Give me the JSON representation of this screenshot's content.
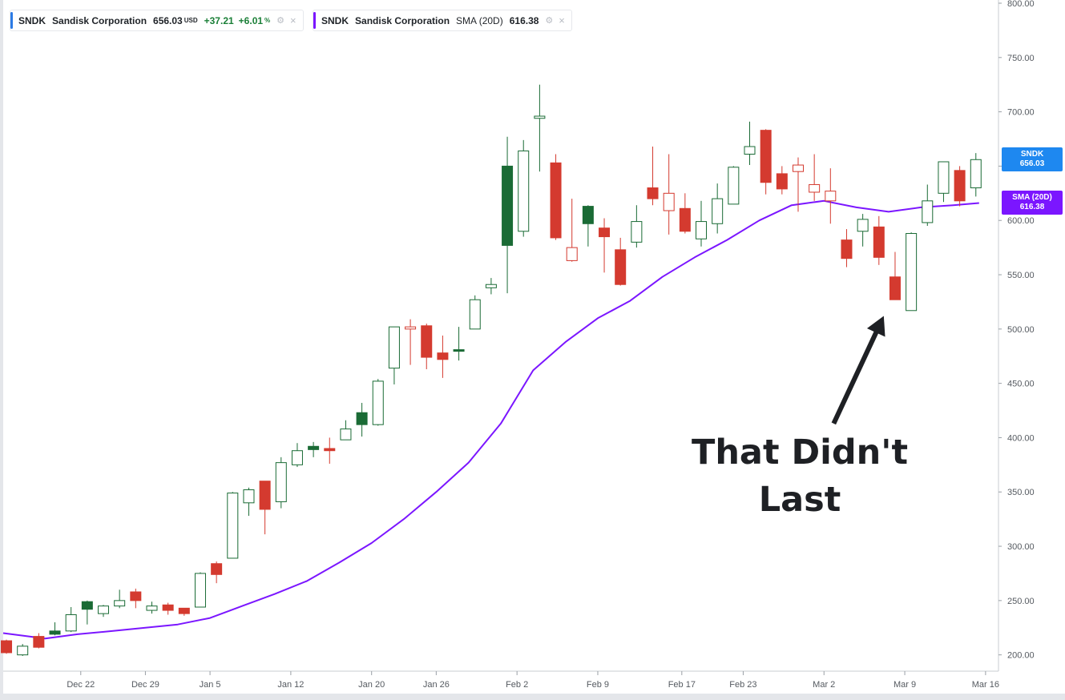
{
  "legends": [
    {
      "symbol": "SNDK",
      "name": "Sandisk Corporation",
      "price": "656.03",
      "currency": "USD",
      "change": "+37.21",
      "change_pct": "+6.01",
      "pct_sign": "%",
      "color": "#2c7be5"
    },
    {
      "symbol": "SNDK",
      "name": "Sandisk Corporation",
      "indicator": "SMA (20D)",
      "value": "616.38",
      "color": "#7b16ff"
    }
  ],
  "price_tags": [
    {
      "label": "SNDK",
      "value": "656.03",
      "color": "#1e88f0"
    },
    {
      "label": "SMA (20D)",
      "value": "616.38",
      "color": "#7b16ff"
    }
  ],
  "annotation": {
    "lines": [
      "That Didn't",
      "Last"
    ],
    "arrow": {
      "from_date_index": 51.2,
      "from_price": 413,
      "to_date_index": 54.3,
      "to_price": 512
    }
  },
  "chart_data": {
    "type": "candlestick",
    "y_axis": {
      "ticks": [
        "200.00",
        "250.00",
        "300.00",
        "350.00",
        "400.00",
        "450.00",
        "500.00",
        "550.00",
        "600.00",
        "650.00",
        "700.00",
        "750.00",
        "800.00"
      ],
      "ylim": [
        185,
        800
      ],
      "position": "right"
    },
    "x_axis": {
      "ticks": [
        {
          "label": "Dec 22",
          "index": 4.6
        },
        {
          "label": "Dec 29",
          "index": 8.6
        },
        {
          "label": "Jan 5",
          "index": 12.6
        },
        {
          "label": "Jan 12",
          "index": 17.6
        },
        {
          "label": "Jan 20",
          "index": 22.6
        },
        {
          "label": "Jan 26",
          "index": 26.6
        },
        {
          "label": "Feb 2",
          "index": 31.6
        },
        {
          "label": "Feb 9",
          "index": 36.6
        },
        {
          "label": "Feb 17",
          "index": 41.8
        },
        {
          "label": "Feb 23",
          "index": 45.6
        },
        {
          "label": "Mar 2",
          "index": 50.6
        },
        {
          "label": "Mar 9",
          "index": 55.6
        },
        {
          "label": "Mar 16",
          "index": 60.6
        }
      ],
      "index_range": [
        -0.2,
        61.4
      ]
    },
    "colors": {
      "up": "#1a6b35",
      "down": "#d43a2f",
      "sma": "#7b16ff"
    },
    "candles": [
      {
        "o": 213,
        "h": 214,
        "l": 201,
        "c": 202,
        "f": 1
      },
      {
        "o": 200,
        "h": 210,
        "l": 199,
        "c": 208,
        "f": 0
      },
      {
        "o": 217,
        "h": 220,
        "l": 206,
        "c": 207,
        "f": 1
      },
      {
        "o": 219,
        "h": 230,
        "l": 218,
        "c": 222,
        "f": 1
      },
      {
        "o": 222,
        "h": 244,
        "l": 221,
        "c": 237,
        "f": 0
      },
      {
        "o": 242,
        "h": 250,
        "l": 228,
        "c": 249,
        "f": 1
      },
      {
        "o": 238,
        "h": 246,
        "l": 235,
        "c": 245,
        "f": 0
      },
      {
        "o": 245,
        "h": 260,
        "l": 243,
        "c": 250,
        "f": 0
      },
      {
        "o": 258,
        "h": 261,
        "l": 243,
        "c": 250,
        "f": 1
      },
      {
        "o": 241,
        "h": 249,
        "l": 238,
        "c": 245,
        "f": 0
      },
      {
        "o": 246,
        "h": 248,
        "l": 237,
        "c": 241,
        "f": 1
      },
      {
        "o": 243,
        "h": 243,
        "l": 236,
        "c": 238,
        "f": 1
      },
      {
        "o": 244,
        "h": 276,
        "l": 244,
        "c": 275,
        "f": 0
      },
      {
        "o": 284,
        "h": 286,
        "l": 266,
        "c": 274,
        "f": 1
      },
      {
        "o": 289,
        "h": 350,
        "l": 289,
        "c": 349,
        "f": 0
      },
      {
        "o": 340,
        "h": 354,
        "l": 328,
        "c": 352,
        "f": 0
      },
      {
        "o": 360,
        "h": 360,
        "l": 311,
        "c": 334,
        "f": 1
      },
      {
        "o": 341,
        "h": 382,
        "l": 335,
        "c": 377,
        "f": 0
      },
      {
        "o": 375,
        "h": 395,
        "l": 373,
        "c": 388,
        "f": 0
      },
      {
        "o": 389,
        "h": 396,
        "l": 382,
        "c": 392,
        "f": 1
      },
      {
        "o": 390,
        "h": 400,
        "l": 376,
        "c": 388,
        "f": 1
      },
      {
        "o": 398,
        "h": 416,
        "l": 398,
        "c": 408,
        "f": 0
      },
      {
        "o": 412,
        "h": 432,
        "l": 401,
        "c": 423,
        "f": 1
      },
      {
        "o": 412,
        "h": 454,
        "l": 411,
        "c": 452,
        "f": 0
      },
      {
        "o": 464,
        "h": 502,
        "l": 449,
        "c": 502,
        "f": 0
      },
      {
        "o": 502,
        "h": 509,
        "l": 467,
        "c": 500,
        "f": 0
      },
      {
        "o": 503,
        "h": 505,
        "l": 463,
        "c": 474,
        "f": 1
      },
      {
        "o": 478,
        "h": 494,
        "l": 455,
        "c": 472,
        "f": 1
      },
      {
        "o": 480,
        "h": 502,
        "l": 471,
        "c": 481,
        "f": 1
      },
      {
        "o": 500,
        "h": 531,
        "l": 500,
        "c": 527,
        "f": 0
      },
      {
        "o": 538,
        "h": 547,
        "l": 532,
        "c": 541,
        "f": 0
      },
      {
        "o": 577,
        "h": 677,
        "l": 533,
        "c": 650,
        "f": 1
      },
      {
        "o": 590,
        "h": 674,
        "l": 585,
        "c": 664,
        "f": 0
      },
      {
        "o": 694,
        "h": 725,
        "l": 645,
        "c": 696,
        "f": 0
      },
      {
        "o": 653,
        "h": 661,
        "l": 582,
        "c": 584,
        "f": 1
      },
      {
        "o": 575,
        "h": 620,
        "l": 562,
        "c": 563,
        "f": 0
      },
      {
        "o": 597,
        "h": 614,
        "l": 576,
        "c": 613,
        "f": 1
      },
      {
        "o": 593,
        "h": 602,
        "l": 552,
        "c": 585,
        "f": 1
      },
      {
        "o": 573,
        "h": 584,
        "l": 540,
        "c": 541,
        "f": 1
      },
      {
        "o": 580,
        "h": 614,
        "l": 575,
        "c": 599,
        "f": 0
      },
      {
        "o": 630,
        "h": 668,
        "l": 614,
        "c": 620,
        "f": 1
      },
      {
        "o": 625,
        "h": 661,
        "l": 587,
        "c": 609,
        "f": 0
      },
      {
        "o": 611,
        "h": 625,
        "l": 588,
        "c": 590,
        "f": 1
      },
      {
        "o": 583,
        "h": 618,
        "l": 576,
        "c": 599,
        "f": 0
      },
      {
        "o": 597,
        "h": 634,
        "l": 588,
        "c": 620,
        "f": 0
      },
      {
        "o": 615,
        "h": 650,
        "l": 615,
        "c": 649,
        "f": 0
      },
      {
        "o": 661,
        "h": 691,
        "l": 651,
        "c": 668,
        "f": 0
      },
      {
        "o": 683,
        "h": 684,
        "l": 624,
        "c": 635,
        "f": 1
      },
      {
        "o": 643,
        "h": 650,
        "l": 624,
        "c": 629,
        "f": 1
      },
      {
        "o": 651,
        "h": 658,
        "l": 608,
        "c": 645,
        "f": 0
      },
      {
        "o": 633,
        "h": 661,
        "l": 618,
        "c": 626,
        "f": 0
      },
      {
        "o": 627,
        "h": 648,
        "l": 597,
        "c": 618,
        "f": 0
      },
      {
        "o": 582,
        "h": 592,
        "l": 557,
        "c": 565,
        "f": 1
      },
      {
        "o": 590,
        "h": 606,
        "l": 576,
        "c": 601,
        "f": 0
      },
      {
        "o": 594,
        "h": 604,
        "l": 559,
        "c": 566,
        "f": 1
      },
      {
        "o": 548,
        "h": 571,
        "l": 527,
        "c": 527,
        "f": 1
      },
      {
        "o": 517,
        "h": 589,
        "l": 517,
        "c": 588,
        "f": 0
      },
      {
        "o": 598,
        "h": 633,
        "l": 595,
        "c": 618,
        "f": 0
      },
      {
        "o": 625,
        "h": 654,
        "l": 617,
        "c": 654,
        "f": 0
      },
      {
        "o": 646,
        "h": 650,
        "l": 613,
        "c": 618,
        "f": 1
      },
      {
        "o": 630,
        "h": 662,
        "l": 622,
        "c": 656,
        "f": 0
      }
    ],
    "sma": {
      "name": "SMA (20D)",
      "points": [
        [
          -0.2,
          220
        ],
        [
          2.4,
          215
        ],
        [
          4.4,
          219
        ],
        [
          6.6,
          222
        ],
        [
          8.6,
          225
        ],
        [
          10.6,
          228
        ],
        [
          12.6,
          234
        ],
        [
          14.6,
          245
        ],
        [
          16.6,
          256
        ],
        [
          18.6,
          268
        ],
        [
          20.6,
          285
        ],
        [
          22.6,
          303
        ],
        [
          24.6,
          325
        ],
        [
          26.6,
          350
        ],
        [
          28.6,
          377
        ],
        [
          30.6,
          413
        ],
        [
          32.6,
          462
        ],
        [
          34.6,
          488
        ],
        [
          36.6,
          510
        ],
        [
          38.6,
          526
        ],
        [
          40.6,
          548
        ],
        [
          42.6,
          566
        ],
        [
          44.6,
          582
        ],
        [
          46.6,
          600
        ],
        [
          48.6,
          614
        ],
        [
          50.6,
          618
        ],
        [
          52.6,
          612
        ],
        [
          54.6,
          608
        ],
        [
          56.6,
          612
        ],
        [
          58.6,
          614
        ],
        [
          60.2,
          616
        ]
      ]
    }
  }
}
